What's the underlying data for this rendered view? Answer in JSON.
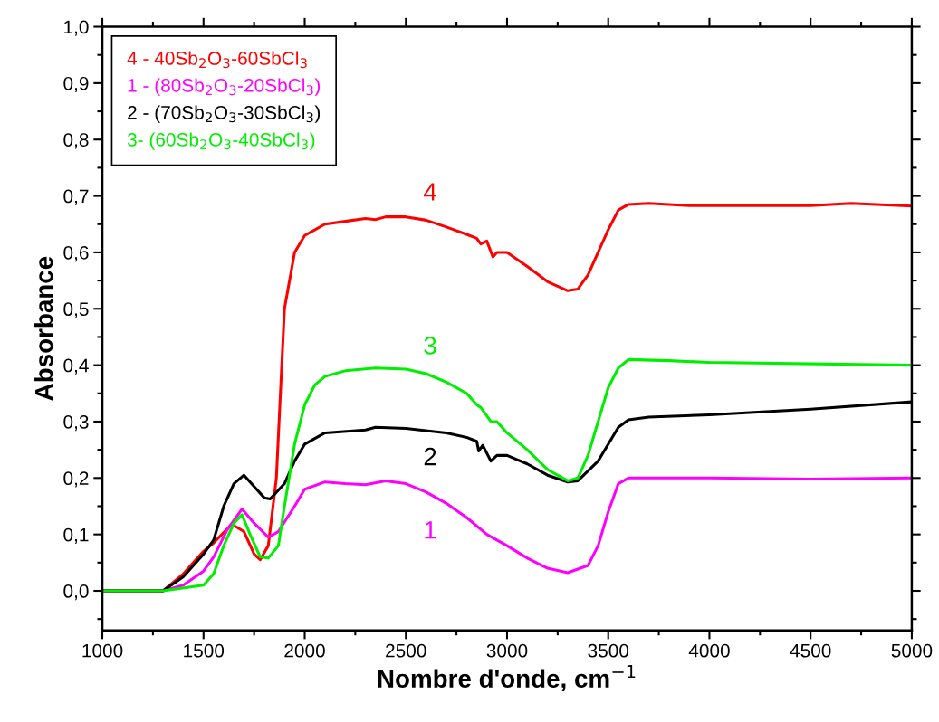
{
  "chart_data": {
    "type": "line",
    "xlabel": "Nombre d'onde, cm$^{−1}$",
    "ylabel": "Absorbance",
    "xlim": [
      1000,
      5000
    ],
    "xticks": [
      1000,
      1500,
      2000,
      2500,
      3000,
      3500,
      4000,
      4500,
      5000
    ],
    "ylim": [
      -0.07,
      1.0
    ],
    "yticks": [
      {
        "value": 0,
        "label": "0,0"
      },
      {
        "value": 0.1,
        "label": "0,1"
      },
      {
        "value": 0.2,
        "label": "0,2"
      },
      {
        "value": 0.3,
        "label": "0,3"
      },
      {
        "value": 0.4,
        "label": "0,4"
      },
      {
        "value": 0.5,
        "label": "0,5"
      },
      {
        "value": 0.6,
        "label": "0,6"
      },
      {
        "value": 0.7,
        "label": "0,7"
      },
      {
        "value": 0.8,
        "label": "0,8"
      },
      {
        "value": 0.9,
        "label": "0,9"
      },
      {
        "value": 1.0,
        "label": "1,0"
      }
    ],
    "grid": false,
    "legend": "top left",
    "marker": "none",
    "line_style": "solid",
    "series": [
      {
        "name": "4 - 40Sb$_{2}$O$_{3}$-60SbCl$_{3}$",
        "color": "#ff0000",
        "x": [
          1000,
          1300,
          1400,
          1500,
          1550,
          1640,
          1700,
          1750,
          1780,
          1820,
          1860,
          1880,
          1900,
          1950,
          2000,
          2100,
          2200,
          2300,
          2350,
          2400,
          2500,
          2600,
          2700,
          2800,
          2850,
          2870,
          2900,
          2930,
          2950,
          3000,
          3100,
          3200,
          3300,
          3350,
          3400,
          3450,
          3500,
          3550,
          3600,
          3700,
          3900,
          4500,
          4700,
          5000
        ],
        "values": [
          0,
          0,
          0.03,
          0.07,
          0.085,
          0.118,
          0.105,
          0.065,
          0.055,
          0.08,
          0.2,
          0.35,
          0.5,
          0.6,
          0.63,
          0.65,
          0.655,
          0.66,
          0.658,
          0.663,
          0.663,
          0.657,
          0.645,
          0.632,
          0.625,
          0.615,
          0.62,
          0.592,
          0.6,
          0.6,
          0.575,
          0.548,
          0.532,
          0.535,
          0.56,
          0.6,
          0.64,
          0.675,
          0.685,
          0.687,
          0.683,
          0.683,
          0.687,
          0.682
        ]
      },
      {
        "name": "1 - (80Sb$_{2}$O$_{3}$-20SbCl$_{3}$)",
        "color": "#ff00ff",
        "x": [
          1000,
          1300,
          1400,
          1500,
          1550,
          1620,
          1690,
          1750,
          1820,
          1870,
          1950,
          2000,
          2100,
          2200,
          2300,
          2400,
          2500,
          2600,
          2700,
          2800,
          2900,
          3000,
          3100,
          3200,
          3300,
          3400,
          3450,
          3500,
          3550,
          3600,
          4000,
          4500,
          5000
        ],
        "values": [
          0,
          0,
          0.01,
          0.035,
          0.06,
          0.11,
          0.145,
          0.12,
          0.095,
          0.105,
          0.15,
          0.18,
          0.193,
          0.19,
          0.188,
          0.195,
          0.19,
          0.175,
          0.155,
          0.13,
          0.1,
          0.08,
          0.058,
          0.04,
          0.032,
          0.045,
          0.08,
          0.14,
          0.19,
          0.2,
          0.2,
          0.198,
          0.2
        ]
      },
      {
        "name": "2 - (70Sb$_{2}$O$_{3}$-30SbCl$_{3}$)",
        "color": "#000000",
        "x": [
          1000,
          1300,
          1400,
          1500,
          1550,
          1600,
          1650,
          1700,
          1750,
          1800,
          1830,
          1900,
          1950,
          2000,
          2100,
          2300,
          2350,
          2500,
          2700,
          2800,
          2850,
          2860,
          2880,
          2920,
          2950,
          3000,
          3100,
          3200,
          3300,
          3350,
          3450,
          3550,
          3600,
          3700,
          4000,
          4500,
          5000
        ],
        "values": [
          0,
          0,
          0.025,
          0.065,
          0.09,
          0.15,
          0.19,
          0.205,
          0.185,
          0.165,
          0.163,
          0.19,
          0.23,
          0.26,
          0.28,
          0.285,
          0.29,
          0.288,
          0.28,
          0.272,
          0.265,
          0.248,
          0.258,
          0.23,
          0.24,
          0.24,
          0.225,
          0.205,
          0.193,
          0.195,
          0.23,
          0.29,
          0.303,
          0.308,
          0.312,
          0.322,
          0.335
        ]
      },
      {
        "name": "3- (60Sb$_{2}$O$_{3}$-40SbCl$_{3}$)",
        "color": "#00ee00",
        "x": [
          1000,
          1300,
          1500,
          1550,
          1600,
          1650,
          1690,
          1730,
          1780,
          1820,
          1870,
          1900,
          1950,
          2000,
          2050,
          2100,
          2200,
          2350,
          2500,
          2600,
          2700,
          2800,
          2850,
          2870,
          2920,
          2950,
          3000,
          3100,
          3200,
          3300,
          3350,
          3400,
          3450,
          3500,
          3550,
          3600,
          3800,
          4000,
          5000
        ],
        "values": [
          0,
          0,
          0.01,
          0.03,
          0.08,
          0.12,
          0.135,
          0.1,
          0.06,
          0.058,
          0.08,
          0.15,
          0.26,
          0.33,
          0.365,
          0.38,
          0.39,
          0.395,
          0.393,
          0.385,
          0.37,
          0.35,
          0.33,
          0.325,
          0.3,
          0.3,
          0.28,
          0.25,
          0.215,
          0.195,
          0.2,
          0.24,
          0.3,
          0.36,
          0.395,
          0.41,
          0.408,
          0.405,
          0.4
        ]
      }
    ],
    "annotations": [
      "4",
      "1",
      "2",
      "3"
    ]
  }
}
